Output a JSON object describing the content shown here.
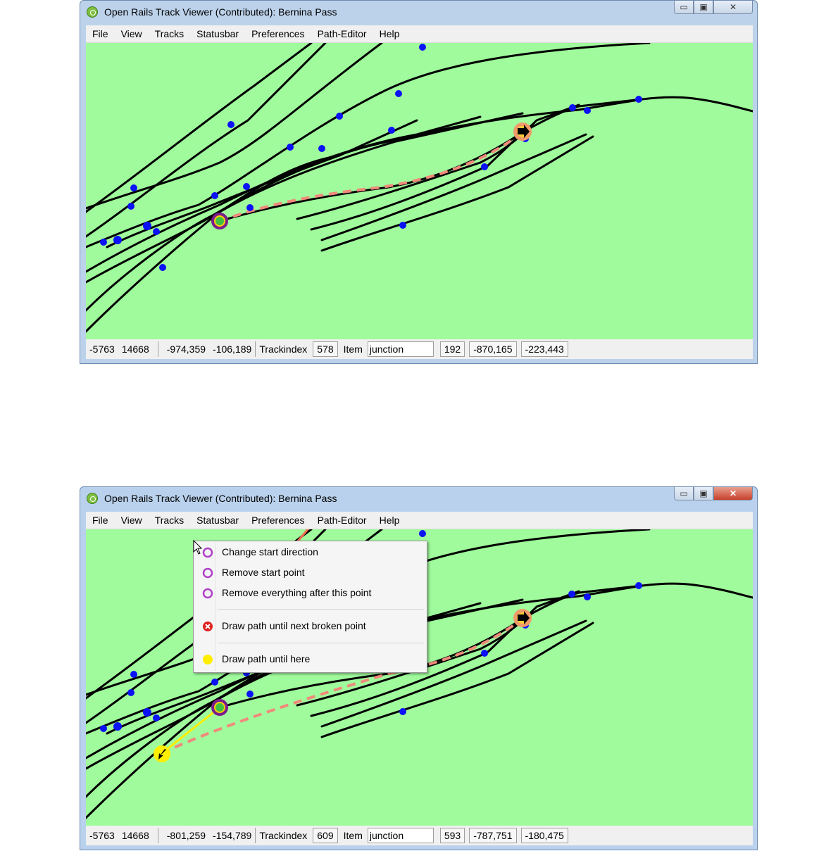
{
  "window": {
    "title": "Open Rails Track Viewer (Contributed): Bernina Pass",
    "minimize_glyph": "▭",
    "maximize_glyph": "▣",
    "close_glyph": "✕"
  },
  "menu": [
    "File",
    "View",
    "Tracks",
    "Statusbar",
    "Preferences",
    "Path-Editor",
    "Help"
  ],
  "statusbars": [
    {
      "tile_x": "-5763",
      "tile_z": "14668",
      "loc_x": "-974,359",
      "loc_z": "-106,189",
      "trackindex_label": "Trackindex",
      "trackindex": "578",
      "item_label": "Item",
      "item": "junction",
      "item_index": "192",
      "item_x": "-870,165",
      "item_z": "-223,443"
    },
    {
      "tile_x": "-5763",
      "tile_z": "14668",
      "loc_x": "-801,259",
      "loc_z": "-154,789",
      "trackindex_label": "Trackindex",
      "trackindex": "609",
      "item_label": "Item",
      "item": "junction",
      "item_index": "593",
      "item_x": "-787,751",
      "item_z": "-180,475"
    }
  ],
  "context_menu": {
    "items": [
      {
        "label": "Change start direction",
        "icon": "purple-ring-icon"
      },
      {
        "label": "Remove start point",
        "icon": "purple-ring-icon"
      },
      {
        "label": "Remove everything after this point",
        "icon": "purple-ring-icon"
      },
      {
        "label": "Draw path until next broken point",
        "icon": "red-broken-icon"
      },
      {
        "label": "Draw path until here",
        "icon": "yellow-dot-icon"
      }
    ]
  },
  "colors": {
    "map_background": "#a0fb9c",
    "track": "#000000",
    "junction": "#0b12f5",
    "path_dashed": "#f08a7a",
    "start_ring": "#7a1e8c",
    "end_ring": "#f08a6a",
    "draw_here": "#ffee00"
  }
}
